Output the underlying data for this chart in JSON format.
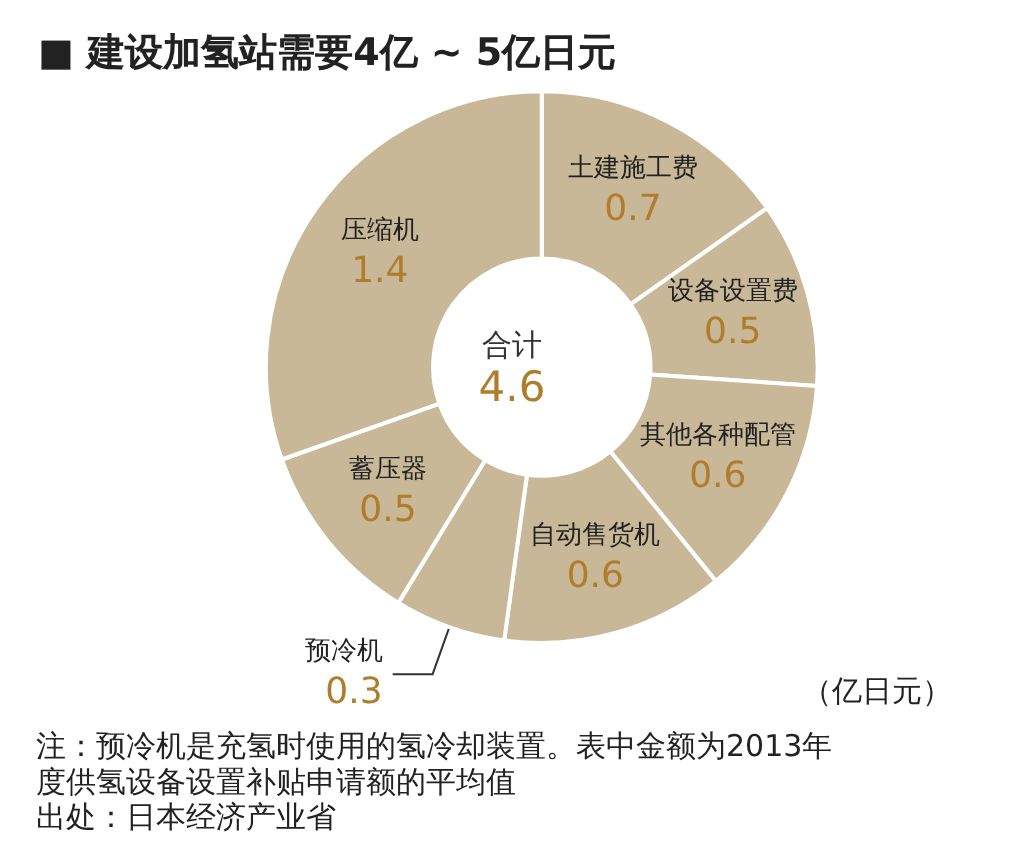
{
  "chart_data": {
    "type": "donut",
    "title": "■ 建设加氢站需要4亿 ~ 5亿日元",
    "categories": [
      "土建施工费",
      "设备设置费",
      "其他各种配管",
      "自动售货机",
      "预冷机",
      "蓄压器",
      "压缩机"
    ],
    "values": [
      0.7,
      0.5,
      0.6,
      0.6,
      0.3,
      0.5,
      1.4
    ],
    "colors": [
      "#c8b898",
      "#c8b898",
      "#c8b898",
      "#c8b898",
      "#c8b898",
      "#c8b898",
      "#c8b898"
    ],
    "data_labels": true,
    "legend": false,
    "annotations": [
      "合计",
      "4.6",
      "（亿日元）",
      "注：预冷机是充氢时使用的氢冷却装置。表中金额为2013年度供氢设备设置补贴申请额的平均值",
      "出处：日本经济产业省"
    ]
  }
}
